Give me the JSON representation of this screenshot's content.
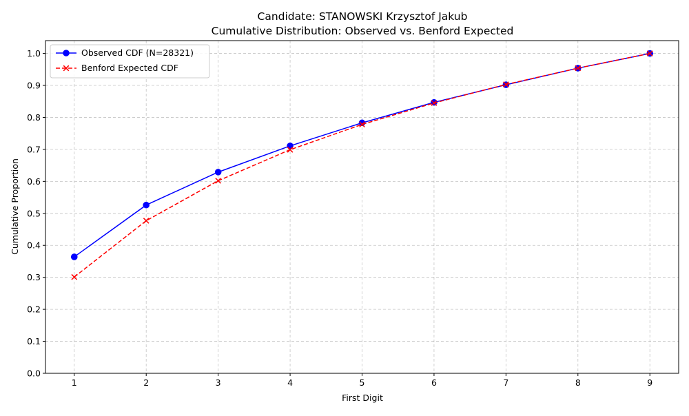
{
  "chart_data": {
    "type": "line",
    "title": "Candidate: STANOWSKI Krzysztof Jakub",
    "subtitle": "Cumulative Distribution: Observed vs. Benford Expected",
    "xlabel": "First Digit",
    "ylabel": "Cumulative Proportion",
    "x": [
      1,
      2,
      3,
      4,
      5,
      6,
      7,
      8,
      9
    ],
    "xlim": [
      0.6,
      9.4
    ],
    "ylim": [
      0,
      1.04
    ],
    "x_ticks": [
      "1",
      "2",
      "3",
      "4",
      "5",
      "6",
      "7",
      "8",
      "9"
    ],
    "y_ticks": [
      "0.0",
      "0.1",
      "0.2",
      "0.3",
      "0.4",
      "0.5",
      "0.6",
      "0.7",
      "0.8",
      "0.9",
      "1.0"
    ],
    "grid": true,
    "legend_position": "top-left",
    "series": [
      {
        "name": "Observed CDF (N=28321)",
        "color": "#0000ff",
        "line_style": "solid",
        "marker": "circle",
        "values": [
          0.364,
          0.526,
          0.629,
          0.711,
          0.783,
          0.847,
          0.902,
          0.954,
          1.0
        ]
      },
      {
        "name": "Benford Expected CDF",
        "color": "#ff0000",
        "line_style": "dashed",
        "marker": "x",
        "values": [
          0.301,
          0.477,
          0.602,
          0.699,
          0.778,
          0.845,
          0.903,
          0.954,
          1.0
        ]
      }
    ]
  }
}
